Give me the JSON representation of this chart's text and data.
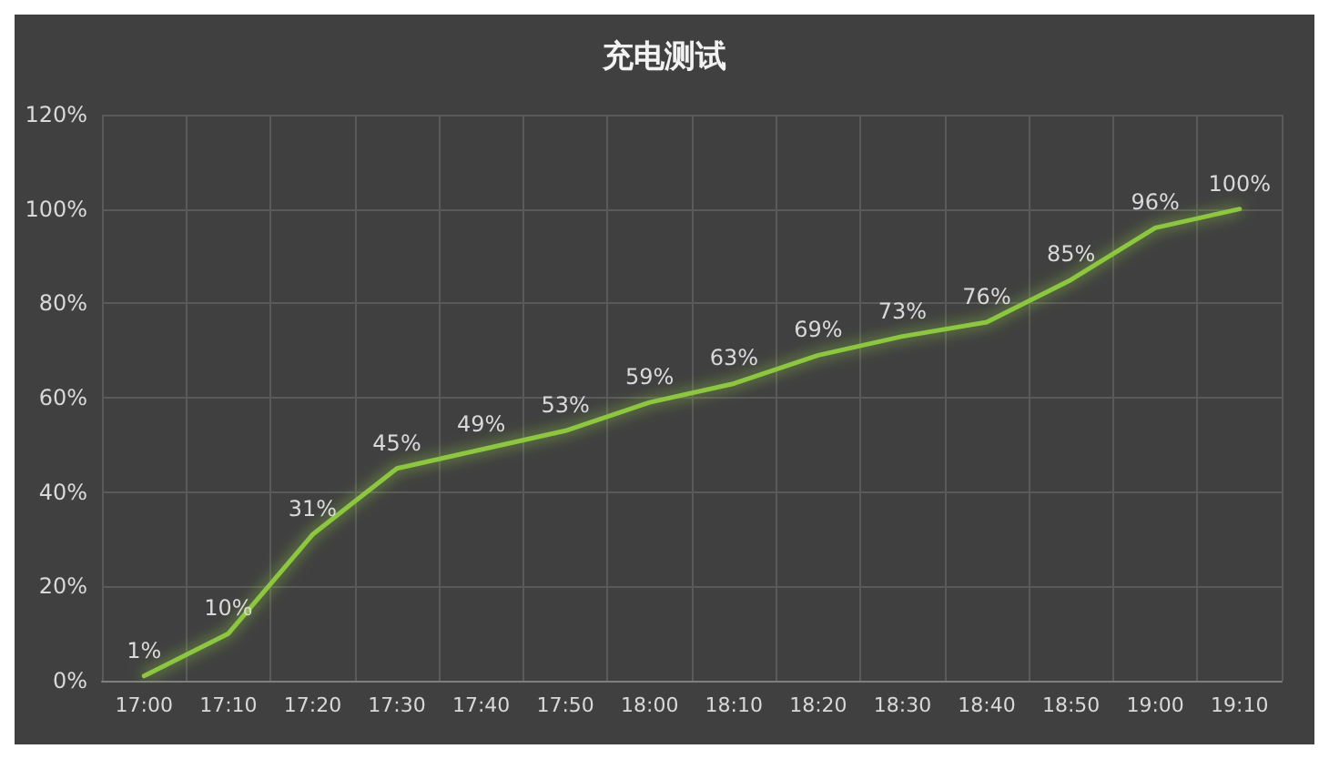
{
  "chart_data": {
    "type": "line",
    "title": "充电测试",
    "categories": [
      "17:00",
      "17:10",
      "17:20",
      "17:30",
      "17:40",
      "17:50",
      "18:00",
      "18:10",
      "18:20",
      "18:30",
      "18:40",
      "18:50",
      "19:00",
      "19:10"
    ],
    "values": [
      1,
      10,
      31,
      45,
      49,
      53,
      59,
      63,
      69,
      73,
      76,
      85,
      96,
      100
    ],
    "value_labels": [
      "1%",
      "10%",
      "31%",
      "45%",
      "49%",
      "53%",
      "59%",
      "63%",
      "69%",
      "73%",
      "76%",
      "85%",
      "96%",
      "100%"
    ],
    "color": "#8dc63f",
    "ylim": [
      0,
      120
    ],
    "yticks": [
      {
        "value": 0,
        "label": "0%"
      },
      {
        "value": 20,
        "label": "20%"
      },
      {
        "value": 40,
        "label": "40%"
      },
      {
        "value": 60,
        "label": "60%"
      },
      {
        "value": 80,
        "label": "80%"
      },
      {
        "value": 100,
        "label": "100%"
      },
      {
        "value": 120,
        "label": "120%"
      }
    ],
    "grid": true,
    "marker": "none",
    "line_style": "solid"
  }
}
